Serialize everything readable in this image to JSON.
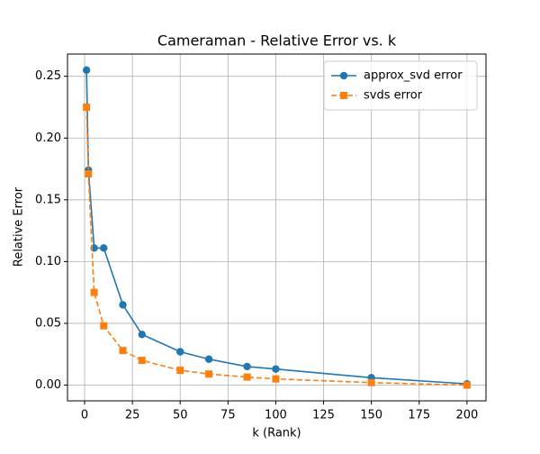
{
  "chart_data": {
    "type": "line",
    "title": "Cameraman - Relative Error vs. k",
    "x_label": "k (Rank)",
    "y_label": "Relative Error",
    "x": [
      1,
      2,
      5,
      10,
      20,
      30,
      50,
      65,
      85,
      100,
      150,
      200
    ],
    "series": [
      {
        "name": "approx_svd error",
        "color": "#1f77b4",
        "marker": "circle",
        "dash": "solid",
        "values": [
          0.255,
          0.174,
          0.111,
          0.111,
          0.065,
          0.041,
          0.027,
          0.021,
          0.015,
          0.013,
          0.006,
          0.001
        ]
      },
      {
        "name": "svds error",
        "color": "#ff7f0e",
        "marker": "square",
        "dash": "dashed",
        "values": [
          0.225,
          0.171,
          0.075,
          0.048,
          0.028,
          0.02,
          0.012,
          0.009,
          0.0065,
          0.005,
          0.002,
          0.0
        ]
      }
    ],
    "xlim": [
      -8.95,
      209.95
    ],
    "xticks": [
      0,
      25,
      50,
      75,
      100,
      125,
      150,
      175,
      200
    ],
    "ylim": [
      -0.01275,
      0.268
    ],
    "yticks": [
      {
        "value": 0,
        "label": "0.00"
      },
      0.05,
      {
        "value": 0.1,
        "label": "0.10"
      },
      0.15,
      {
        "value": 0.2,
        "label": "0.20"
      },
      0.25
    ],
    "grid": true,
    "legend": "upper right"
  }
}
